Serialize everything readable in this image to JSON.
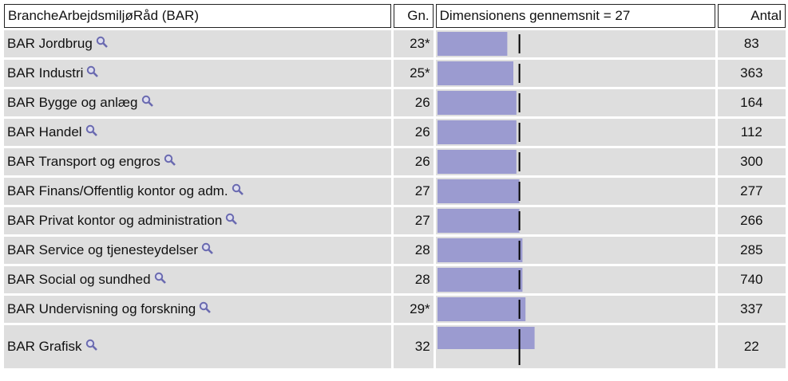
{
  "table": {
    "headers": [
      "BrancheArbejdsmiljøRåd (BAR)",
      "Gn.",
      "Dimensionens gennemsnit = 27",
      "Antal"
    ],
    "average": 27,
    "rows": [
      {
        "name": "BAR Jordbrug",
        "mean": {
          "value": 23,
          "label": "23*"
        },
        "count": 83
      },
      {
        "name": "BAR Industri",
        "mean": {
          "value": 25,
          "label": "25*"
        },
        "count": 363
      },
      {
        "name": "BAR Bygge og anlæg",
        "mean": 26,
        "count": 164
      },
      {
        "name": "BAR Handel",
        "mean": 26,
        "count": 112
      },
      {
        "name": "BAR Transport og engros",
        "mean": 26,
        "count": 300
      },
      {
        "name": "BAR Finans/Offentlig kontor og adm.",
        "mean": 27,
        "count": 277
      },
      {
        "name": "BAR Privat kontor og administration",
        "mean": 27,
        "count": 266
      },
      {
        "name": "BAR Service og tjenesteydelser",
        "mean": 28,
        "count": 285
      },
      {
        "name": "BAR Social og sundhed",
        "mean": 28,
        "count": 740
      },
      {
        "name": "BAR Undervisning og forskning",
        "mean": {
          "value": 29,
          "label": "29*"
        },
        "count": 337
      },
      {
        "name": "BAR Grafisk",
        "mean": 32,
        "count": 22
      }
    ]
  }
}
